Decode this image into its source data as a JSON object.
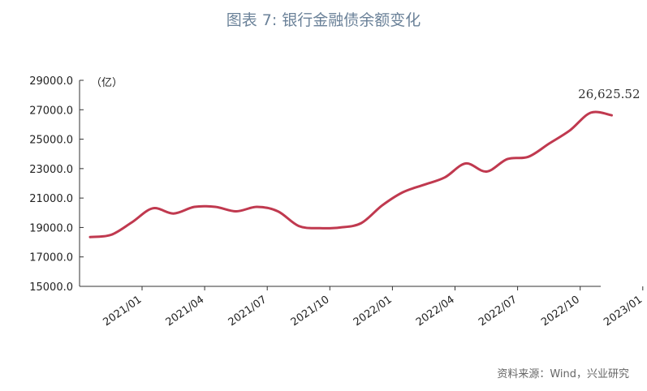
{
  "title": "图表 7:   银行金融债余额变化",
  "source": "资料来源：Wind，兴业研究",
  "chart_data": {
    "type": "line",
    "title": "图表 7:   银行金融债余额变化",
    "unit_label": "（亿）",
    "ylim": [
      15000,
      29000
    ],
    "y_ticks": [
      15000,
      17000,
      19000,
      21000,
      23000,
      25000,
      27000,
      29000
    ],
    "y_tick_labels": [
      "15000.0",
      "17000.0",
      "19000.0",
      "21000.0",
      "23000.0",
      "25000.0",
      "27000.0",
      "29000.0"
    ],
    "x_tick_labels": [
      "2021/01",
      "2021/04",
      "2021/07",
      "2021/10",
      "2022/01",
      "2022/04",
      "2022/07",
      "2022/10",
      "2023/01"
    ],
    "series": [
      {
        "color": "#c0394f",
        "x": [
          "2021/01",
          "2021/02",
          "2021/03",
          "2021/04",
          "2021/05",
          "2021/06",
          "2021/07",
          "2021/08",
          "2021/09",
          "2021/10",
          "2021/11",
          "2021/12",
          "2022/01",
          "2022/02",
          "2022/03",
          "2022/04",
          "2022/05",
          "2022/06",
          "2022/07",
          "2022/08",
          "2022/09",
          "2022/10",
          "2022/11",
          "2022/12",
          "2023/01",
          "2023/02"
        ],
        "values": [
          18350,
          18500,
          19350,
          20300,
          19950,
          20400,
          20400,
          20100,
          20400,
          20100,
          19100,
          18950,
          19000,
          19300,
          20500,
          21400,
          21900,
          22400,
          23350,
          22800,
          23650,
          23800,
          24700,
          25600,
          26800,
          26625.52
        ]
      }
    ],
    "annotations": [
      {
        "text": "26,625.52",
        "x": "2023/02",
        "y": 26625.52
      }
    ],
    "grid": false,
    "legend": "none"
  }
}
